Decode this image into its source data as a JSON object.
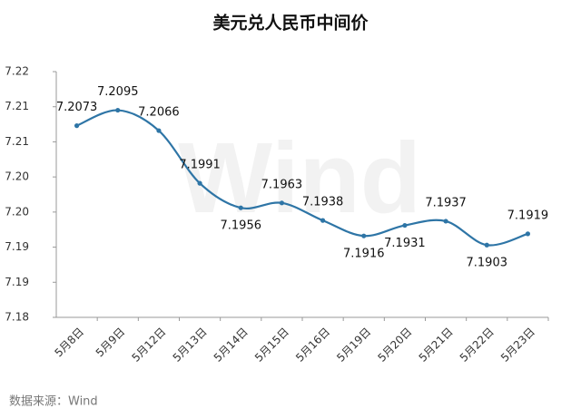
{
  "chart_data": {
    "type": "line",
    "title": "美元兑人民币中间价",
    "source": "数据来源：Wind",
    "watermark": "Wind",
    "categories": [
      "5月8日",
      "5月9日",
      "5月12日",
      "5月13日",
      "5月14日",
      "5月15日",
      "5月16日",
      "5月19日",
      "5月20日",
      "5月21日",
      "5月22日",
      "5月23日"
    ],
    "series": [
      {
        "color": "#2e75a6",
        "values": [
          7.2073,
          7.2095,
          7.2066,
          7.1991,
          7.1956,
          7.1963,
          7.1938,
          7.1916,
          7.1931,
          7.1937,
          7.1903,
          7.1919
        ]
      }
    ],
    "ylim": [
      7.18,
      7.215
    ],
    "yticks": [
      {
        "value": 7.18,
        "label": "7.18"
      },
      {
        "value": 7.185,
        "label": "7.19"
      },
      {
        "value": 7.19,
        "label": "7.19"
      },
      {
        "value": 7.195,
        "label": "7.20"
      },
      {
        "value": 7.2,
        "label": "7.20"
      },
      {
        "value": 7.205,
        "label": "7.21"
      },
      {
        "value": 7.21,
        "label": "7.21"
      },
      {
        "value": 7.215,
        "label": "7.22"
      }
    ],
    "grid": false
  }
}
